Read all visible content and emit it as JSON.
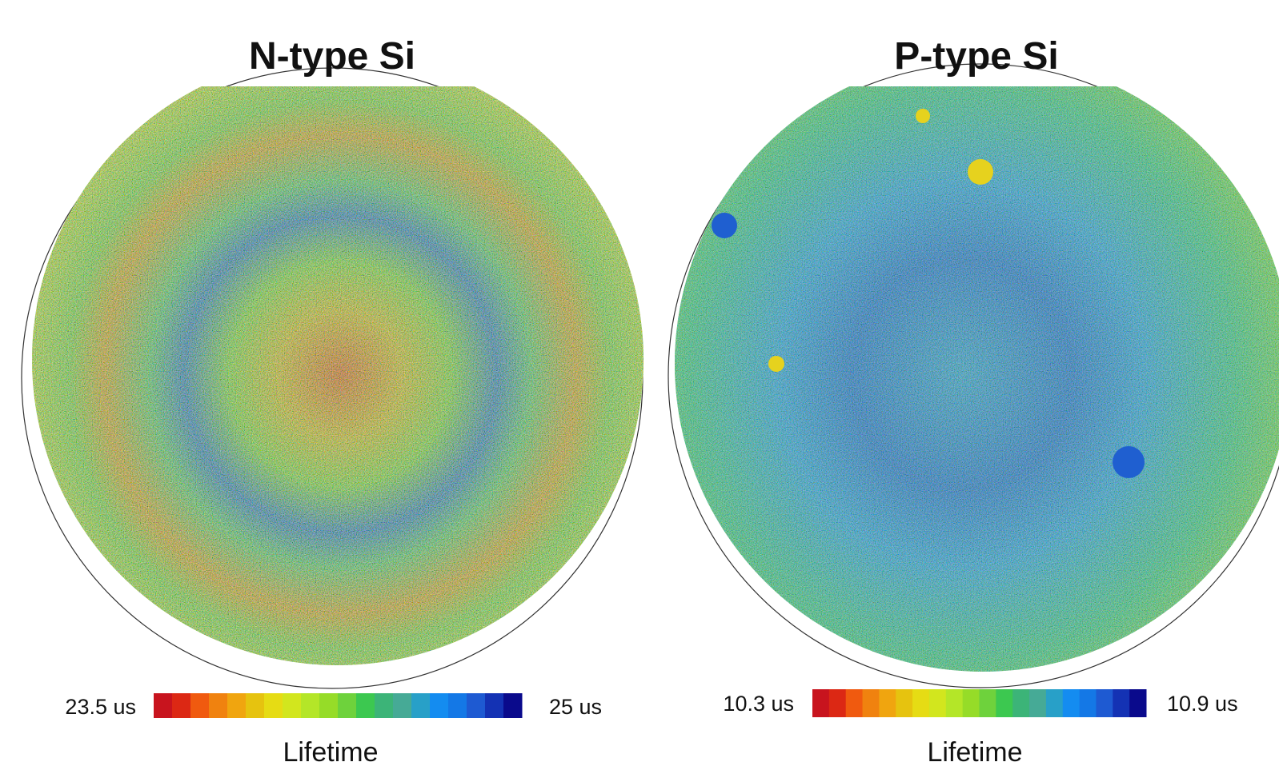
{
  "panels": [
    {
      "title": "N-type Si",
      "colorbar": {
        "min_label": "23.5 us",
        "max_label": "25 us",
        "label": "Lifetime",
        "colors": [
          "#c8141e",
          "#dc2814",
          "#f05a0f",
          "#f0820f",
          "#f0a50f",
          "#e6c30f",
          "#e6dc14",
          "#d2e61e",
          "#b4e628",
          "#96dc28",
          "#6ed23c",
          "#3cc850",
          "#3cb478",
          "#46aa96",
          "#28a0c8",
          "#148cf0",
          "#1478e6",
          "#1e5ad2",
          "#1432b4",
          "#0a0a8c"
        ]
      }
    },
    {
      "title": "P-type Si",
      "colorbar": {
        "min_label": "10.3 us",
        "max_label": "10.9 us",
        "label": "Lifetime",
        "colors": [
          "#c8141e",
          "#dc2814",
          "#f05a0f",
          "#f0820f",
          "#f0a50f",
          "#e6c30f",
          "#e6dc14",
          "#d2e61e",
          "#b4e628",
          "#96dc28",
          "#6ed23c",
          "#3cc850",
          "#3cb478",
          "#46aa96",
          "#28a0c8",
          "#148cf0",
          "#1478e6",
          "#1e5ad2",
          "#1432b4",
          "#0a0a8c"
        ]
      }
    }
  ]
}
